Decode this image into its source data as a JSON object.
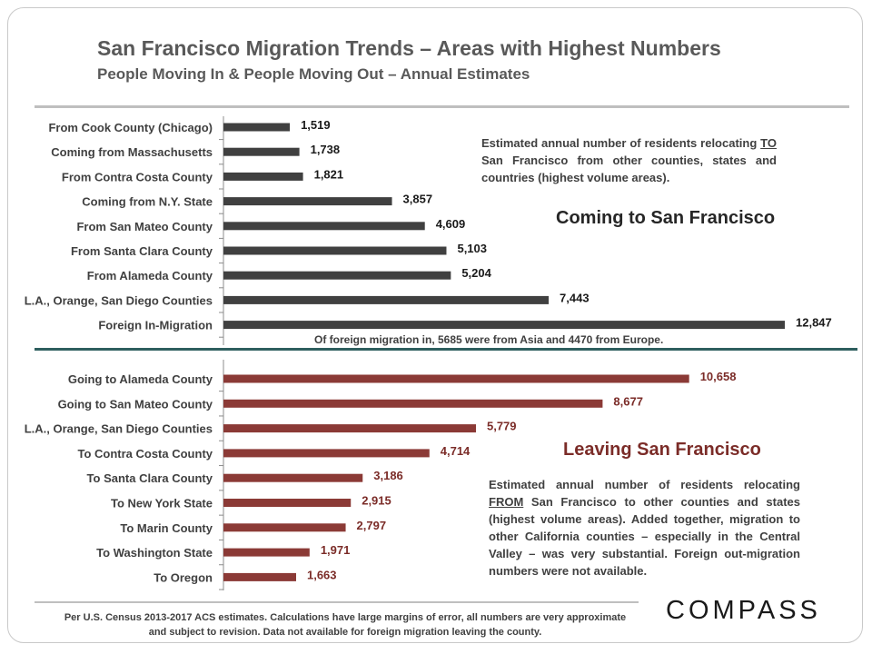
{
  "header": {
    "title": "San Francisco Migration Trends – Areas with Highest Numbers",
    "subtitle": "People Moving In & People Moving Out – Annual Estimates"
  },
  "annotations": {
    "coming_heading": "Coming to San Francisco",
    "leaving_heading": "Leaving San Francisco",
    "coming_note_pre": "Estimated annual number of residents relocating ",
    "coming_note_emph": "TO",
    "coming_note_post": " San Francisco from other counties, states and countries (highest volume areas).",
    "leaving_note_pre": "Estimated annual number of residents relocating ",
    "leaving_note_emph": "FROM",
    "leaving_note_post": " San Francisco to other counties and states (highest volume areas). Added together, migration to other California counties – especially in the Central Valley – was very substantial. Foreign out-migration numbers were not available.",
    "foreign_note": "Of foreign migration in, 5685 were from Asia and 4470 from Europe."
  },
  "footer": {
    "source": "Per U.S. Census 2013-2017 ACS estimates. Calculations have large margins of error, all numbers are very approximate and subject to revision. Data not available for foreign migration leaving the county.",
    "logo": "COMPASS"
  },
  "colors": {
    "in_bar": "#404040",
    "out_bar": "#8b3a36",
    "out_label": "#7b2c28",
    "divider": "#2e5e5e"
  },
  "chart_data": [
    {
      "type": "bar",
      "orientation": "horizontal",
      "title": "Coming to San Francisco",
      "categories": [
        "From Cook County (Chicago)",
        "Coming from Massachusetts",
        "From Contra Costa County",
        "Coming from N.Y. State",
        "From San Mateo County",
        "From Santa Clara County",
        "From Alameda County",
        "L.A., Orange, San Diego Counties",
        "Foreign In-Migration"
      ],
      "values": [
        1519,
        1738,
        1821,
        3857,
        4609,
        5103,
        5204,
        7443,
        12847
      ],
      "labels": [
        "1,519",
        "1,738",
        "1,821",
        "3,857",
        "4,609",
        "5,103",
        "5,204",
        "7,443",
        "12,847"
      ],
      "xlim": [
        0,
        13000
      ]
    },
    {
      "type": "bar",
      "orientation": "horizontal",
      "title": "Leaving San Francisco",
      "categories": [
        "Going to Alameda County",
        "Going to San Mateo County",
        "L.A., Orange, San Diego Counties",
        "To Contra Costa County",
        "To Santa Clara County",
        "To New York State",
        "To Marin County",
        "To Washington State",
        "To Oregon"
      ],
      "values": [
        10658,
        8677,
        5779,
        4714,
        3186,
        2915,
        2797,
        1971,
        1663
      ],
      "labels": [
        "10,658",
        "8,677",
        "5,779",
        "4,714",
        "3,186",
        "2,915",
        "2,797",
        "1,971",
        "1,663"
      ],
      "xlim": [
        0,
        13000
      ]
    }
  ]
}
